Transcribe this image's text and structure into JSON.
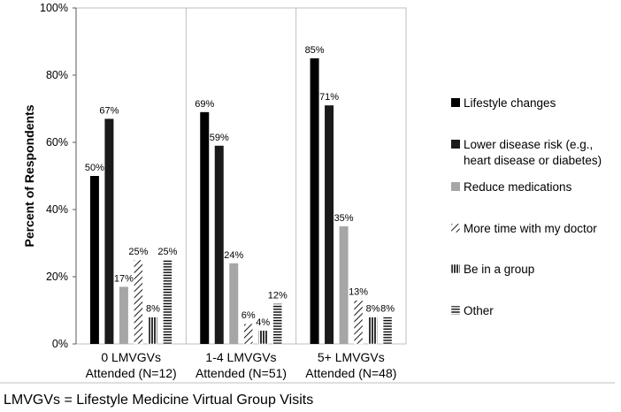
{
  "chart_data": {
    "type": "bar",
    "title": "",
    "ylabel": "Percent of Respondents",
    "xlabel": "",
    "ylim": [
      0,
      100
    ],
    "yticks": [
      "0%",
      "20%",
      "40%",
      "60%",
      "80%",
      "100%"
    ],
    "categories": [
      [
        "0 LMVGVs",
        "Attended (N=12)"
      ],
      [
        "1-4 LMVGVs",
        "Attended (N=51)"
      ],
      [
        "5+ LMVGVs",
        "Attended (N=48)"
      ]
    ],
    "series": [
      {
        "name": "Lifestyle changes",
        "pattern": "solid-black",
        "values": [
          50,
          69,
          85
        ],
        "labels": [
          "50%",
          "69%",
          "85%"
        ]
      },
      {
        "name": [
          "Lower disease risk (e.g.,",
          "heart disease or diabetes)"
        ],
        "pattern": "solid-dark",
        "values": [
          67,
          59,
          71
        ],
        "labels": [
          "67%",
          "59%",
          "71%"
        ]
      },
      {
        "name": "Reduce medications",
        "pattern": "solid-gray",
        "values": [
          17,
          24,
          35
        ],
        "labels": [
          "17%",
          "24%",
          "35%"
        ]
      },
      {
        "name": "More time with my doctor",
        "pattern": "diagonal",
        "values": [
          25,
          6,
          13
        ],
        "labels": [
          "25%",
          "6%",
          "13%"
        ]
      },
      {
        "name": "Be in a group",
        "pattern": "vertical",
        "values": [
          8,
          4,
          8
        ],
        "labels": [
          "8%",
          "4%",
          "8%"
        ]
      },
      {
        "name": "Other",
        "pattern": "horizontal",
        "values": [
          25,
          12,
          8
        ],
        "labels": [
          "25%",
          "12%",
          "8%"
        ]
      }
    ],
    "legend_position": "right",
    "grid": "vertical-only"
  },
  "colors": {
    "solid_black": "#000000",
    "solid_dark": "#1a1a1a",
    "solid_gray": "#a6a6a6",
    "grid": "#bfbfbf",
    "axis": "#595959"
  },
  "footnote": "LMVGVs = Lifestyle Medicine Virtual Group Visits"
}
